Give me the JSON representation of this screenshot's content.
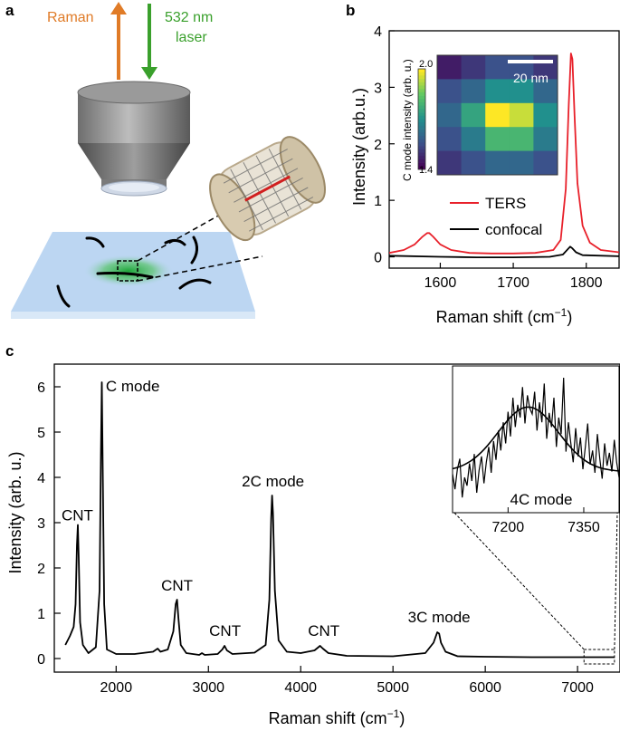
{
  "panels": {
    "a": "a",
    "b": "b",
    "c": "c"
  },
  "schematic": {
    "raman_label": "Raman",
    "laser_label_line1": "532 nm",
    "laser_label_line2": "laser",
    "colors": {
      "raman_arrow": "#e07b27",
      "laser_arrow": "#3aa02c",
      "substrate": "#bcd6f2",
      "hotspot": "#2fb84a",
      "nanotube": "#000000"
    }
  },
  "colors": {
    "ters": "#e8202a",
    "confocal": "#000000",
    "axis": "#000000"
  },
  "chart_data": [
    {
      "id": "b",
      "type": "line",
      "xlabel": "Raman shift (cm",
      "xlabel_sup": "−1",
      "xlabel_end": ")",
      "ylabel": "Intensity (arb.u.)",
      "xlim": [
        1530,
        1845
      ],
      "ylim": [
        -0.2,
        4
      ],
      "xticks": [
        1600,
        1700,
        1800
      ],
      "yticks": [
        0,
        1,
        2,
        3,
        4
      ],
      "legend": [
        "TERS",
        "confocal"
      ],
      "legend_position": "right",
      "series": [
        {
          "name": "TERS",
          "x": [
            1530,
            1550,
            1565,
            1575,
            1582,
            1585,
            1590,
            1600,
            1615,
            1640,
            1670,
            1700,
            1730,
            1755,
            1765,
            1772,
            1776,
            1779,
            1781,
            1784,
            1788,
            1795,
            1805,
            1820,
            1845
          ],
          "y": [
            0.07,
            0.12,
            0.22,
            0.35,
            0.42,
            0.42,
            0.36,
            0.22,
            0.12,
            0.07,
            0.06,
            0.06,
            0.07,
            0.12,
            0.3,
            1.2,
            2.7,
            3.6,
            3.5,
            2.5,
            1.3,
            0.55,
            0.25,
            0.12,
            0.08
          ]
        },
        {
          "name": "confocal",
          "x": [
            1530,
            1600,
            1650,
            1700,
            1750,
            1768,
            1775,
            1778,
            1781,
            1786,
            1795,
            1845
          ],
          "y": [
            0.02,
            0.0,
            -0.01,
            -0.01,
            0.0,
            0.04,
            0.14,
            0.18,
            0.15,
            0.08,
            0.03,
            0.01
          ]
        }
      ],
      "inset_heatmap": {
        "colorbar_label": "C mode intensity (arb. u.)",
        "colorbar_ticks": [
          "2.0",
          "1.4"
        ],
        "scale_bar_label": "20 nm",
        "grid": [
          [
            1.45,
            1.5,
            1.55,
            1.55,
            1.5
          ],
          [
            1.55,
            1.6,
            1.7,
            1.7,
            1.6
          ],
          [
            1.6,
            1.75,
            2.0,
            1.95,
            1.7
          ],
          [
            1.55,
            1.65,
            1.8,
            1.8,
            1.65
          ],
          [
            1.5,
            1.55,
            1.6,
            1.6,
            1.55
          ]
        ],
        "range": [
          1.4,
          2.0
        ]
      }
    },
    {
      "id": "c",
      "type": "line",
      "xlabel": "Raman shift (cm",
      "xlabel_sup": "−1",
      "xlabel_end": ")",
      "ylabel": "Intensity (arb. u.)",
      "xlim": [
        1330,
        7460
      ],
      "ylim": [
        -0.3,
        6.5
      ],
      "xticks": [
        2000,
        3000,
        4000,
        5000,
        6000,
        7000
      ],
      "yticks": [
        0,
        1,
        2,
        3,
        4,
        5,
        6
      ],
      "series": [
        {
          "name": "spectrum",
          "x": [
            1450,
            1500,
            1540,
            1560,
            1575,
            1585,
            1595,
            1610,
            1640,
            1700,
            1780,
            1820,
            1835,
            1845,
            1855,
            1870,
            1900,
            2000,
            2200,
            2400,
            2450,
            2480,
            2560,
            2620,
            2645,
            2660,
            2675,
            2700,
            2760,
            2900,
            2930,
            2960,
            3100,
            3150,
            3175,
            3200,
            3260,
            3500,
            3620,
            3660,
            3680,
            3690,
            3700,
            3720,
            3760,
            3850,
            4000,
            4150,
            4210,
            4240,
            4300,
            4500,
            5000,
            5350,
            5440,
            5480,
            5500,
            5520,
            5570,
            5700,
            6000,
            6500,
            7000,
            7400
          ],
          "y": [
            0.3,
            0.5,
            0.7,
            1.2,
            2.5,
            2.95,
            2.2,
            0.8,
            0.3,
            0.12,
            0.25,
            1.5,
            4.5,
            6.1,
            4.2,
            1.2,
            0.2,
            0.1,
            0.1,
            0.15,
            0.22,
            0.15,
            0.2,
            0.6,
            1.2,
            1.3,
            0.9,
            0.3,
            0.12,
            0.08,
            0.12,
            0.08,
            0.1,
            0.2,
            0.28,
            0.18,
            0.1,
            0.13,
            0.3,
            1.3,
            3.1,
            3.6,
            3.2,
            1.5,
            0.4,
            0.15,
            0.12,
            0.18,
            0.28,
            0.22,
            0.12,
            0.06,
            0.05,
            0.12,
            0.35,
            0.58,
            0.55,
            0.35,
            0.15,
            0.05,
            0.04,
            0.03,
            0.03,
            0.03
          ]
        }
      ],
      "annotations": [
        {
          "text": "CNT",
          "x": 1580,
          "y": 3.05
        },
        {
          "text": "C mode",
          "x": 2180,
          "y": 5.9
        },
        {
          "text": "CNT",
          "x": 2660,
          "y": 1.5
        },
        {
          "text": "CNT",
          "x": 3180,
          "y": 0.5
        },
        {
          "text": "2C mode",
          "x": 3700,
          "y": 3.8
        },
        {
          "text": "CNT",
          "x": 4250,
          "y": 0.5
        },
        {
          "text": "3C mode",
          "x": 5500,
          "y": 0.8
        }
      ],
      "zoom_box": {
        "x": [
          7070,
          7400
        ],
        "y": [
          -0.12,
          0.2
        ]
      },
      "inset": {
        "label": "4C mode",
        "xlim": [
          7090,
          7420
        ],
        "xticks": [
          7200,
          7350
        ],
        "fit": {
          "center": 7240,
          "width": 60,
          "amplitude": 0.55,
          "baseline": 0.2
        },
        "noise": [
          0.18,
          0.05,
          0.22,
          0.31,
          -0.02,
          0.15,
          0.08,
          0.27,
          0.12,
          0.35,
          0.02,
          0.21,
          0.33,
          0.1,
          0.28,
          0.41,
          0.19,
          0.46,
          0.3,
          0.55,
          0.38,
          0.62,
          0.44,
          0.71,
          0.5,
          0.83,
          0.58,
          0.77,
          0.66,
          0.92,
          0.61,
          0.85,
          0.74,
          0.69,
          0.88,
          0.55,
          0.79,
          0.62,
          0.95,
          0.48,
          0.7,
          0.58,
          0.83,
          0.41,
          0.66,
          0.52,
          1.0,
          0.37,
          0.62,
          0.44,
          0.28,
          0.57,
          0.33,
          0.49,
          0.22,
          0.41,
          0.61,
          0.26,
          0.38,
          0.19,
          0.52,
          0.31,
          0.14,
          0.44,
          0.25,
          0.36,
          0.2,
          0.47,
          0.28,
          0.15
        ]
      }
    }
  ]
}
